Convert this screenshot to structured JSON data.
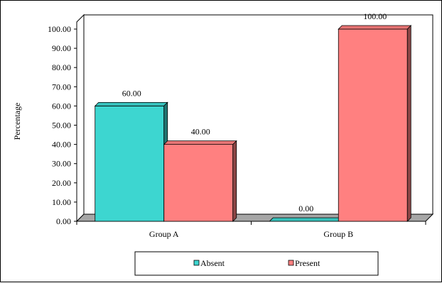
{
  "chart_data": {
    "type": "bar",
    "title": "",
    "xlabel": "",
    "ylabel": "Percentage",
    "categories": [
      "Group A",
      "Group B"
    ],
    "series": [
      {
        "name": "Absent",
        "values": [
          60.0,
          0.0
        ],
        "color": "#3dd6d0"
      },
      {
        "name": "Present",
        "values": [
          40.0,
          100.0
        ],
        "color": "#ff8080"
      }
    ],
    "ylim": [
      0,
      100
    ],
    "yticks": [
      "0.00",
      "10.00",
      "20.00",
      "30.00",
      "40.00",
      "50.00",
      "60.00",
      "70.00",
      "80.00",
      "90.00",
      "100.00"
    ],
    "data_labels": [
      [
        "60.00",
        "0.00"
      ],
      [
        "40.00",
        "100.00"
      ]
    ],
    "style": "3d-bar",
    "grid": false,
    "legend_position": "bottom"
  }
}
